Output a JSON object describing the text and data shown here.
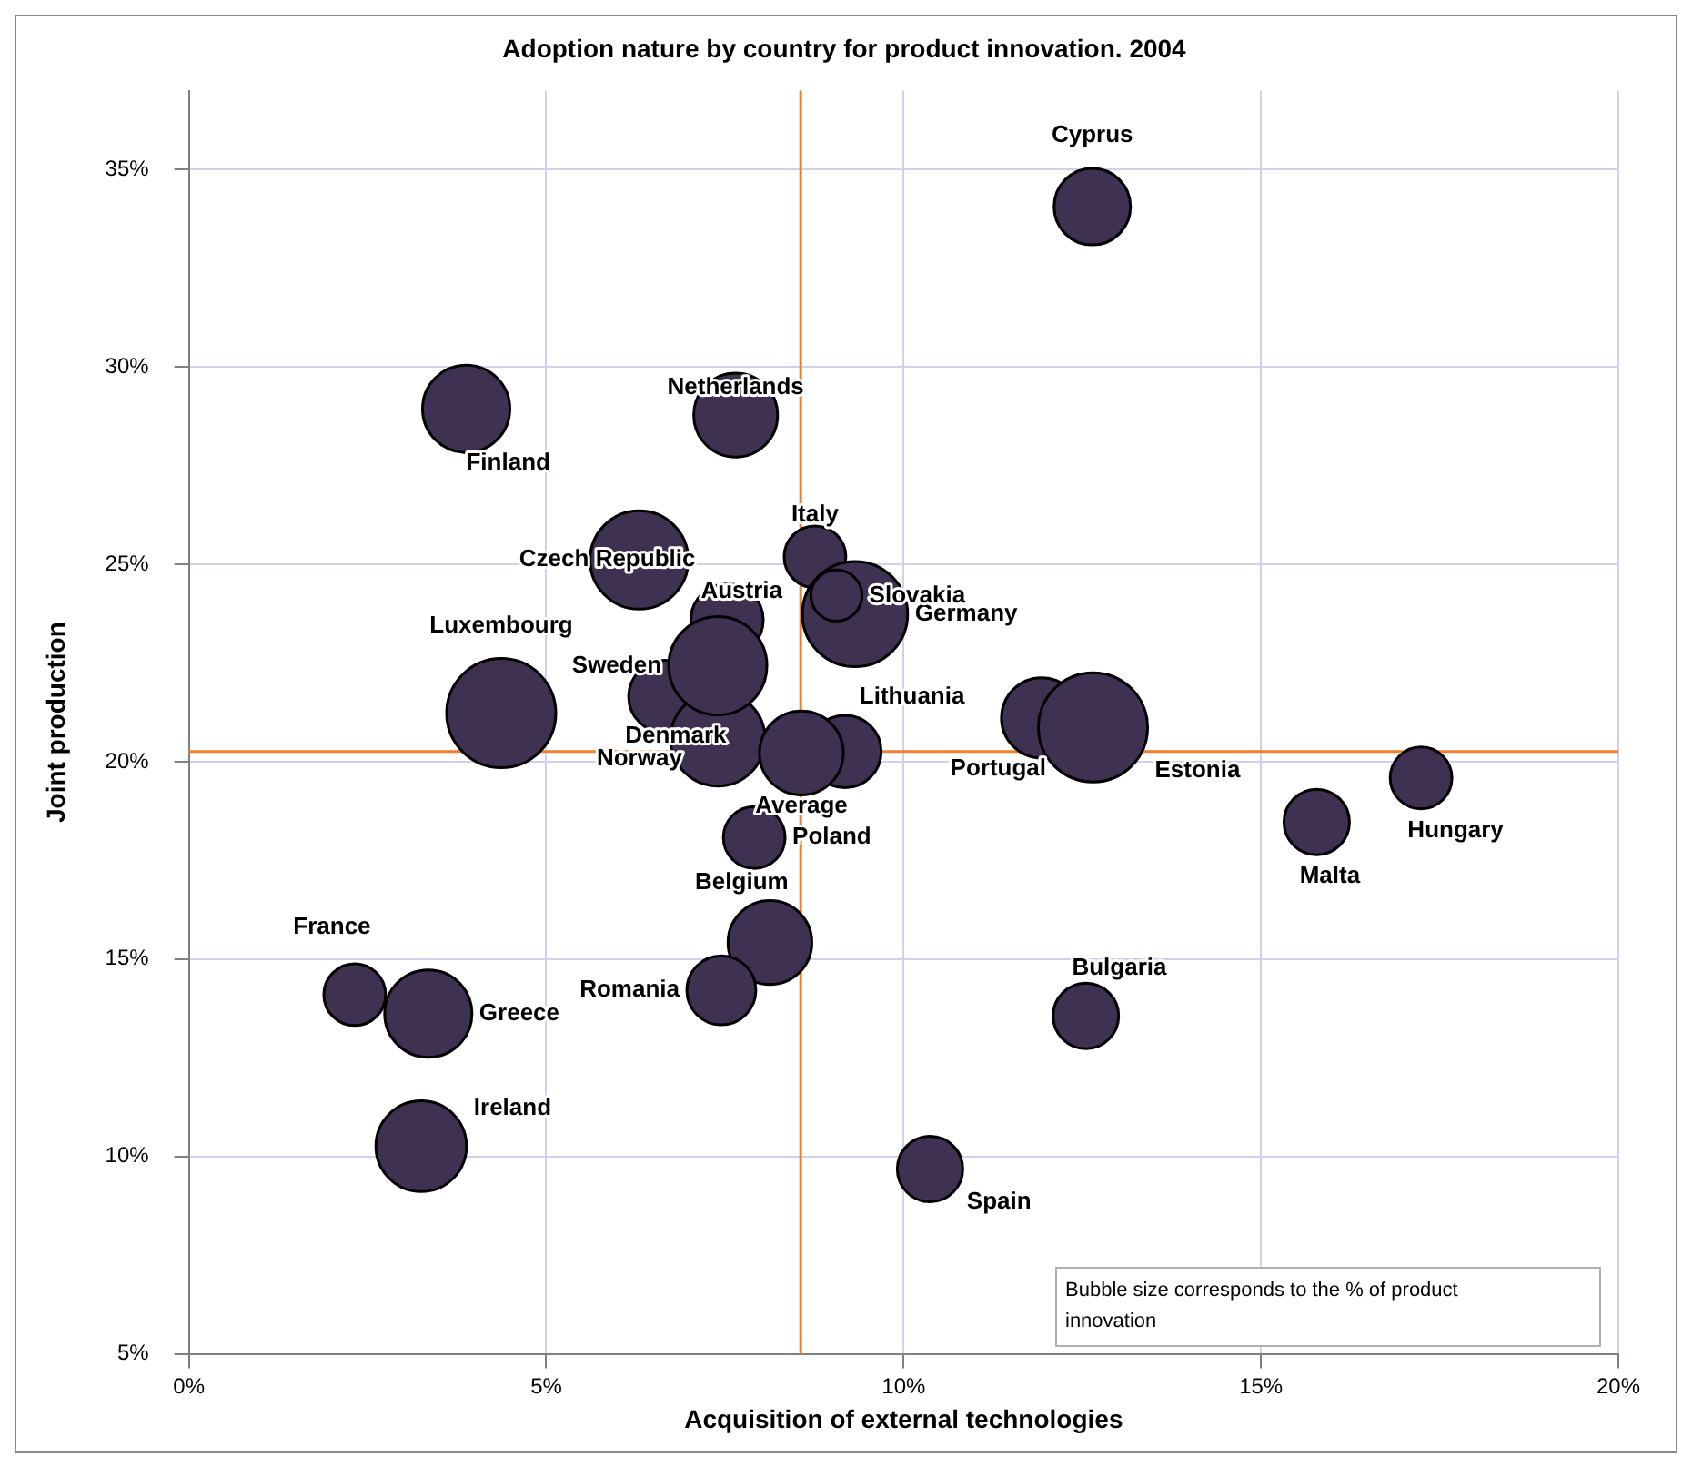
{
  "chart_data": {
    "type": "bubble",
    "title": "Adoption nature by country for product innovation. 2004",
    "xlabel": "Acquisition of external technologies",
    "ylabel": "Joint production",
    "xlim": [
      0,
      20
    ],
    "xticks": [
      {
        "value": 0,
        "label": "0%"
      },
      {
        "value": 5,
        "label": "5%"
      },
      {
        "value": 10,
        "label": "10%"
      },
      {
        "value": 15,
        "label": "15%"
      },
      {
        "value": 20,
        "label": "20%"
      }
    ],
    "ylim": [
      5,
      37
    ],
    "yticks": [
      {
        "value": 5,
        "label": "5%"
      },
      {
        "value": 10,
        "label": "10%"
      },
      {
        "value": 15,
        "label": "15%"
      },
      {
        "value": 20,
        "label": "20%"
      },
      {
        "value": 25,
        "label": "25%"
      },
      {
        "value": 30,
        "label": "30%"
      },
      {
        "value": 35,
        "label": "35%"
      }
    ],
    "grid": true,
    "legend": false,
    "annotations": [
      "Bubble size corresponds to the % of product innovation"
    ],
    "ref_lines": [
      {
        "axis": "x",
        "value": 8.56,
        "color": "#f07f2a"
      },
      {
        "axis": "y",
        "value": 20.26,
        "color": "#f07f2a"
      }
    ],
    "series": [
      {
        "name": "Cyprus",
        "color": "#3f3151",
        "x": [
          12.64
        ],
        "values": [
          34.06
        ],
        "sizes": [
          0.49
        ]
      },
      {
        "name": "Finland",
        "color": "#3f3151",
        "x": [
          3.88
        ],
        "values": [
          28.94
        ],
        "sizes": [
          0.64
        ]
      },
      {
        "name": "Netherlands",
        "color": "#3f3151",
        "x": [
          7.65
        ],
        "values": [
          28.78
        ],
        "sizes": [
          0.59
        ]
      },
      {
        "name": "Czech Republic",
        "color": "#3f3151",
        "x": [
          6.3
        ],
        "values": [
          25.11
        ],
        "sizes": [
          0.81
        ]
      },
      {
        "name": "Austria",
        "color": "#3f3151",
        "x": [
          7.53
        ],
        "values": [
          23.59
        ],
        "sizes": [
          0.44
        ]
      },
      {
        "name": "Italy",
        "color": "#3f3151",
        "x": [
          8.76
        ],
        "values": [
          25.19
        ],
        "sizes": [
          0.32
        ]
      },
      {
        "name": "Germany",
        "color": "#3f3151",
        "x": [
          9.32
        ],
        "values": [
          23.74
        ],
        "sizes": [
          0.93
        ]
      },
      {
        "name": "Slovakia",
        "color": "#3f3151",
        "x": [
          9.06
        ],
        "values": [
          24.21
        ],
        "sizes": [
          0.22
        ]
      },
      {
        "name": "Luxembourg",
        "color": "#3f3151",
        "x": [
          4.37
        ],
        "values": [
          21.23
        ],
        "sizes": [
          1
        ]
      },
      {
        "name": "Denmark",
        "color": "#3f3151",
        "x": [
          6.66
        ],
        "values": [
          21.65
        ],
        "sizes": [
          0.44
        ]
      },
      {
        "name": "Norway",
        "color": "#3f3151",
        "x": [
          7.4
        ],
        "values": [
          20.58
        ],
        "sizes": [
          0.75
        ]
      },
      {
        "name": "Sweden",
        "color": "#3f3151",
        "x": [
          7.4
        ],
        "values": [
          22.43
        ],
        "sizes": [
          0.81
        ]
      },
      {
        "name": "Lithuania",
        "color": "#3f3151",
        "x": [
          9.18
        ],
        "values": [
          20.26
        ],
        "sizes": [
          0.44
        ]
      },
      {
        "name": "Average",
        "color": "#3f3151",
        "x": [
          8.57
        ],
        "values": [
          20.22
        ],
        "sizes": [
          0.59
        ]
      },
      {
        "name": "Poland",
        "color": "#3f3151",
        "x": [
          7.91
        ],
        "values": [
          18.08
        ],
        "sizes": [
          0.32
        ]
      },
      {
        "name": "Belgium",
        "color": "#3f3151",
        "x": [
          8.13
        ],
        "values": [
          15.42
        ],
        "sizes": [
          0.59
        ]
      },
      {
        "name": "Romania",
        "color": "#3f3151",
        "x": [
          7.45
        ],
        "values": [
          14.21
        ],
        "sizes": [
          0.4
        ]
      },
      {
        "name": "Portugal",
        "color": "#3f3151",
        "x": [
          11.93
        ],
        "values": [
          21.11
        ],
        "sizes": [
          0.54
        ]
      },
      {
        "name": "Estonia",
        "color": "#3f3151",
        "x": [
          12.65
        ],
        "values": [
          20.87
        ],
        "sizes": [
          1
        ]
      },
      {
        "name": "Hungary",
        "color": "#3f3151",
        "x": [
          17.24
        ],
        "values": [
          19.59
        ],
        "sizes": [
          0.32
        ]
      },
      {
        "name": "Malta",
        "color": "#3f3151",
        "x": [
          15.78
        ],
        "values": [
          18.47
        ],
        "sizes": [
          0.36
        ]
      },
      {
        "name": "France",
        "color": "#3f3151",
        "x": [
          2.32
        ],
        "values": [
          14.1
        ],
        "sizes": [
          0.32
        ]
      },
      {
        "name": "Greece",
        "color": "#3f3151",
        "x": [
          3.35
        ],
        "values": [
          13.62
        ],
        "sizes": [
          0.64
        ]
      },
      {
        "name": "Ireland",
        "color": "#3f3151",
        "x": [
          3.25
        ],
        "values": [
          10.26
        ],
        "sizes": [
          0.69
        ]
      },
      {
        "name": "Bulgaria",
        "color": "#3f3151",
        "x": [
          12.55
        ],
        "values": [
          13.56
        ],
        "sizes": [
          0.36
        ]
      },
      {
        "name": "Spain",
        "color": "#3f3151",
        "x": [
          10.37
        ],
        "values": [
          9.68
        ],
        "sizes": [
          0.36
        ]
      }
    ]
  }
}
